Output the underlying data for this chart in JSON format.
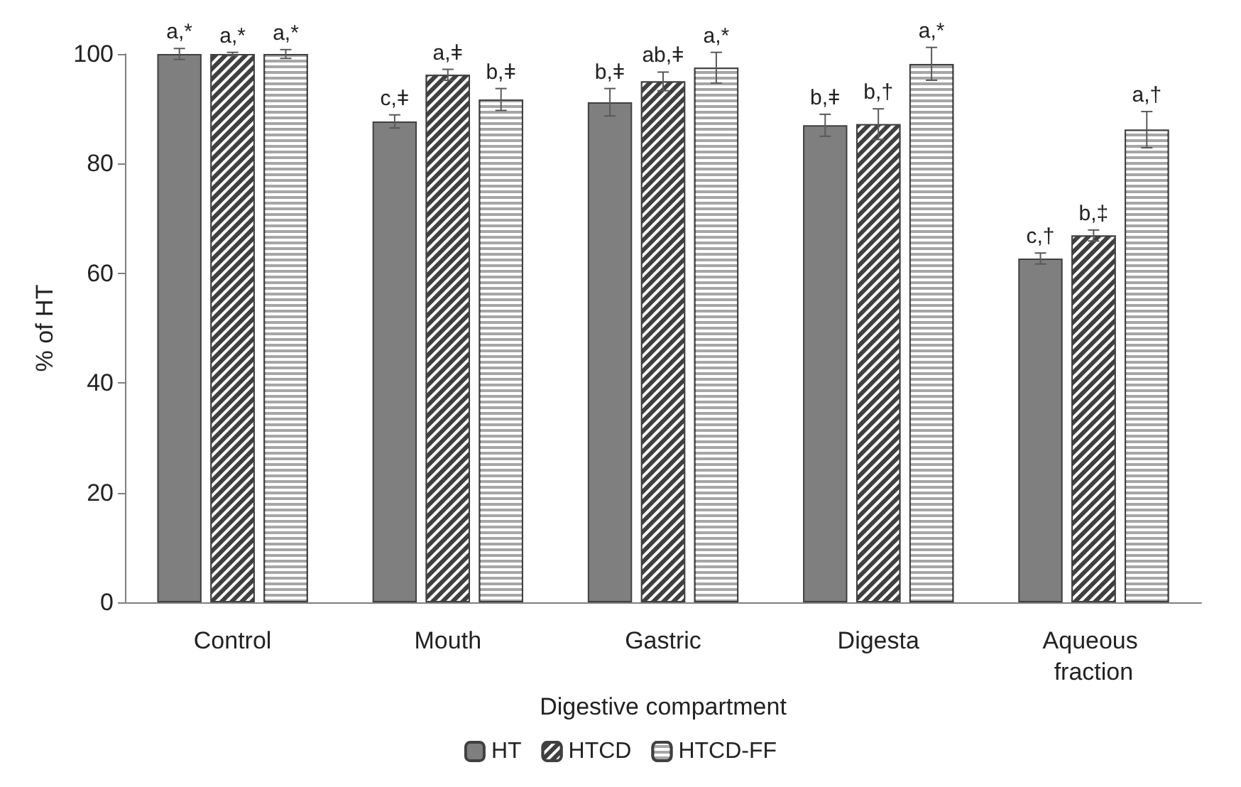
{
  "chart_data": {
    "type": "bar",
    "xlabel": "Digestive compartment",
    "ylabel": "% of HT",
    "categories": [
      "Control",
      "Mouth",
      "Gastric",
      "Digesta",
      "Aqueous fraction"
    ],
    "series": [
      {
        "name": "HT",
        "color": "#7f7f7f",
        "values": [
          100,
          87.7,
          91.2,
          87,
          62.7
        ],
        "errors": [
          1,
          1.2,
          2.5,
          2,
          1
        ],
        "value_labels": [
          "a,*",
          "c,ǂ",
          "b,ǂ",
          "b,ǂ",
          "c,†"
        ]
      },
      {
        "name": "HTCD",
        "color": "#404040",
        "values": [
          100,
          96.2,
          95,
          87.2,
          66.9
        ],
        "errors": [
          0.3,
          1,
          1.7,
          2.8,
          1
        ],
        "value_labels": [
          "a,*",
          "a,ǂ",
          "ab,ǂ",
          "b,†",
          "b,‡"
        ]
      },
      {
        "name": "HTCD-FF",
        "color": "#a6a6a6",
        "values": [
          100,
          91.7,
          97.5,
          98.2,
          86.2
        ],
        "errors": [
          0.8,
          2,
          2.8,
          3,
          3.3
        ],
        "value_labels": [
          "a,*",
          "b,ǂ",
          "a,*",
          "a,*",
          "a,†"
        ]
      }
    ],
    "ylim": [
      0,
      100
    ],
    "yticks": [
      0,
      20,
      40,
      60,
      80,
      100
    ],
    "grid": false,
    "legend": "bottom"
  }
}
